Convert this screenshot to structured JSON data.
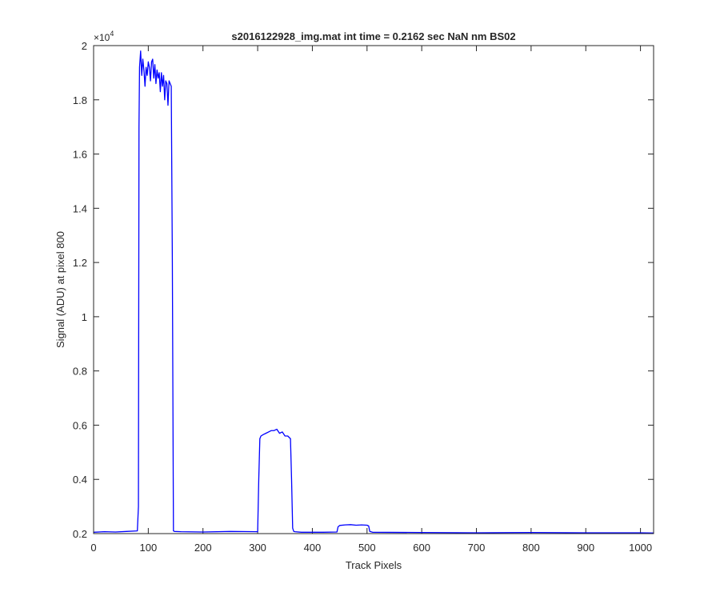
{
  "chart_data": {
    "type": "line",
    "title": "s2016122928_img.mat int time = 0.2162 sec  NaN nm BS02",
    "xlabel": "Track Pixels",
    "ylabel": "Signal (ADU) at pixel 800",
    "y_exponent_label": "×10",
    "y_exponent_power": "4",
    "xlim": [
      0,
      1024
    ],
    "ylim": [
      0.2,
      2.0
    ],
    "y_scale_note": "values in units of 1e4 ADU",
    "grid": false,
    "legend": "none",
    "series_color": "#0000ff",
    "x_ticks": [
      0,
      100,
      200,
      300,
      400,
      500,
      600,
      700,
      800,
      900,
      1000
    ],
    "x_tick_labels": [
      "0",
      "100",
      "200",
      "300",
      "400",
      "500",
      "600",
      "700",
      "800",
      "900",
      "1000"
    ],
    "y_ticks": [
      0.2,
      0.4,
      0.6,
      0.8,
      1.0,
      1.2,
      1.4,
      1.6,
      1.8,
      2.0
    ],
    "y_tick_labels": [
      "0.2",
      "0.4",
      "0.6",
      "0.8",
      "1",
      "1.2",
      "1.4",
      "1.6",
      "1.8",
      "2"
    ],
    "series": [
      {
        "x": [
          0,
          20,
          40,
          60,
          80,
          82,
          83,
          84,
          86,
          88,
          90,
          92,
          94,
          96,
          98,
          100,
          102,
          104,
          106,
          108,
          110,
          112,
          114,
          116,
          118,
          120,
          122,
          124,
          126,
          128,
          130,
          132,
          134,
          136,
          138,
          140,
          142,
          144,
          146,
          148,
          160,
          200,
          250,
          300,
          302,
          304,
          306,
          310,
          315,
          320,
          325,
          330,
          335,
          340,
          345,
          350,
          355,
          360,
          362,
          364,
          366,
          368,
          380,
          420,
          445,
          447,
          450,
          460,
          470,
          480,
          490,
          500,
          503,
          505,
          510,
          600,
          700,
          800,
          900,
          1000,
          1024
        ],
        "y": [
          0.205,
          0.207,
          0.206,
          0.208,
          0.21,
          0.3,
          1.7,
          1.92,
          1.98,
          1.89,
          1.95,
          1.91,
          1.85,
          1.92,
          1.89,
          1.94,
          1.92,
          1.87,
          1.94,
          1.95,
          1.88,
          1.93,
          1.86,
          1.91,
          1.88,
          1.9,
          1.83,
          1.9,
          1.85,
          1.89,
          1.8,
          1.87,
          1.86,
          1.78,
          1.87,
          1.86,
          1.85,
          1.2,
          0.21,
          0.208,
          0.207,
          0.206,
          0.208,
          0.207,
          0.4,
          0.55,
          0.56,
          0.565,
          0.57,
          0.575,
          0.58,
          0.58,
          0.585,
          0.57,
          0.575,
          0.56,
          0.56,
          0.55,
          0.4,
          0.22,
          0.208,
          0.207,
          0.205,
          0.205,
          0.206,
          0.225,
          0.23,
          0.232,
          0.233,
          0.231,
          0.232,
          0.231,
          0.228,
          0.208,
          0.205,
          0.204,
          0.203,
          0.204,
          0.203,
          0.203,
          0.202
        ]
      }
    ]
  }
}
